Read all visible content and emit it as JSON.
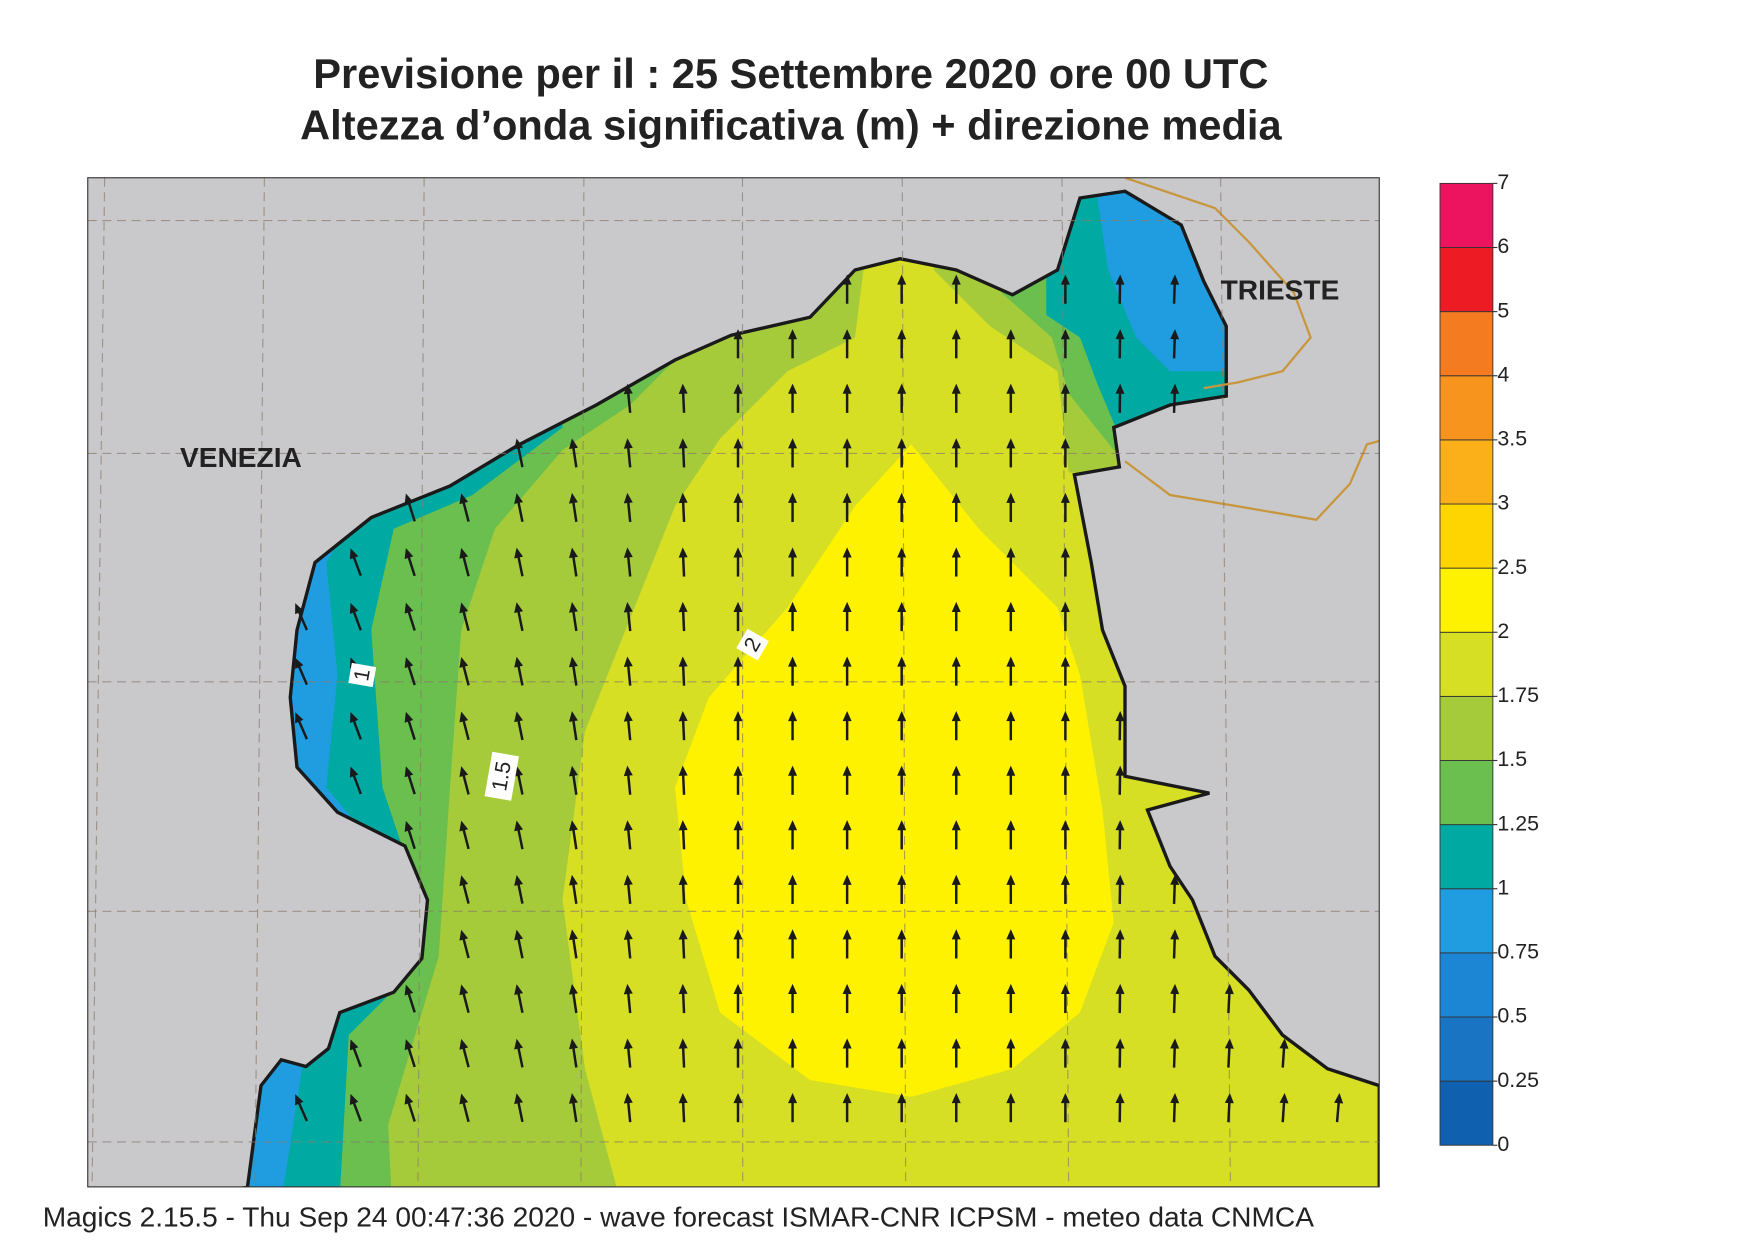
{
  "title": [
    "Previsione per il  :  25 Settembre 2020   ore 00 UTC",
    "Altezza d’onda significativa (m) + direzione media"
  ],
  "map": {
    "places": [
      "VENEZIA",
      "TRIESTE"
    ],
    "contour_labels": [
      1,
      1.5,
      2
    ]
  },
  "colorbar": {
    "ticks": [
      0,
      0.25,
      0.5,
      0.75,
      1,
      1.25,
      1.5,
      1.75,
      2,
      2.5,
      3,
      3.5,
      4,
      5,
      6,
      7
    ],
    "colors": [
      "#1060b0",
      "#1a74c4",
      "#1c86d4",
      "#1f9de0",
      "#00aaa2",
      "#6abf4e",
      "#a6cb3a",
      "#d6df24",
      "#fff200",
      "#ffd500",
      "#fbb01a",
      "#f7941d",
      "#f47b20",
      "#ed1c24",
      "#ec145e"
    ]
  },
  "footer": "Magics 2.15.5 - Thu Sep 24 00:47:36 2020 - wave forecast  ISMAR-CNR  ICPSM - meteo data   CNMCA"
}
